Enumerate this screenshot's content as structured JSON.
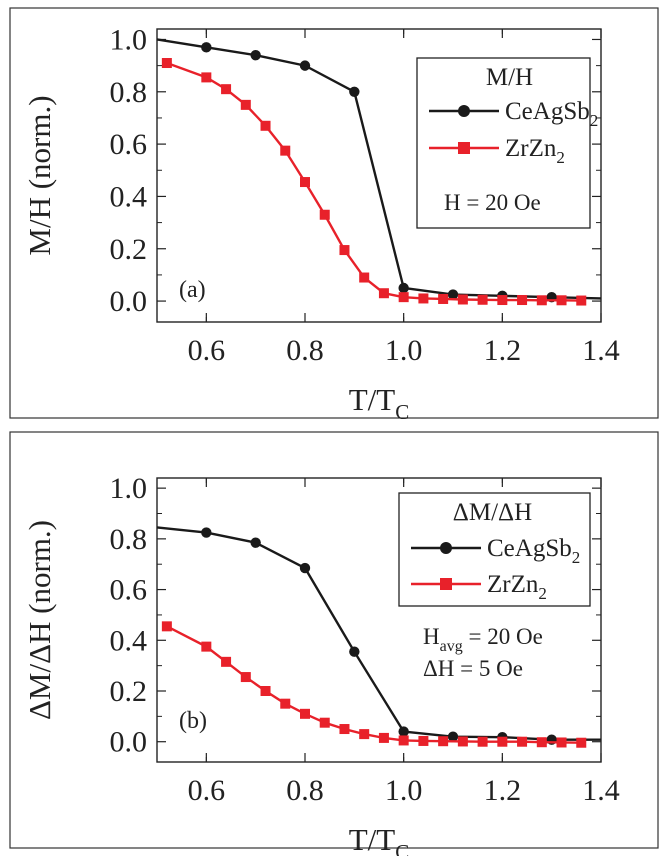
{
  "chart_data": [
    {
      "type": "line",
      "panel_label": "(a)",
      "xlabel": "T/T",
      "xlabel_sub": "C",
      "ylabel": "M/H (norm.)",
      "xlim": [
        0.5,
        1.4
      ],
      "ylim": [
        -0.08,
        1.04
      ],
      "xticks": [
        0.6,
        0.8,
        1.0,
        1.2,
        1.4
      ],
      "xtick_labels": [
        "0.6",
        "0.8",
        "1.0",
        "1.2",
        "1.4"
      ],
      "yticks": [
        0.0,
        0.2,
        0.4,
        0.6,
        0.8,
        1.0
      ],
      "ytick_labels": [
        "0.0",
        "0.2",
        "0.4",
        "0.6",
        "0.8",
        "1.0"
      ],
      "legend_title": "M/H",
      "legend_position": "top-right",
      "annotations": [
        {
          "text": "H = 20 Oe"
        }
      ],
      "series": [
        {
          "name": "CeAgSb",
          "name_sub": "2",
          "color": "#1a1a1a",
          "marker": "circle",
          "x": [
            0.5,
            0.6,
            0.7,
            0.8,
            0.9,
            1.0,
            1.1,
            1.2,
            1.3,
            1.4
          ],
          "y": [
            1.0,
            0.97,
            0.94,
            0.9,
            0.8,
            0.05,
            0.025,
            0.02,
            0.015,
            0.01
          ],
          "markers_at": [
            0.6,
            0.7,
            0.8,
            0.9,
            1.0,
            1.1,
            1.2,
            1.3
          ]
        },
        {
          "name": "ZrZn",
          "name_sub": "2",
          "color": "#e8212a",
          "marker": "square",
          "x": [
            0.52,
            0.6,
            0.64,
            0.68,
            0.72,
            0.76,
            0.8,
            0.84,
            0.88,
            0.92,
            0.96,
            1.0,
            1.04,
            1.08,
            1.12,
            1.16,
            1.2,
            1.24,
            1.28,
            1.32,
            1.36
          ],
          "y": [
            0.91,
            0.855,
            0.81,
            0.75,
            0.67,
            0.575,
            0.455,
            0.33,
            0.195,
            0.09,
            0.03,
            0.015,
            0.01,
            0.008,
            0.006,
            0.005,
            0.004,
            0.004,
            0.003,
            0.003,
            0.002
          ],
          "markers_at": "all"
        }
      ]
    },
    {
      "type": "line",
      "panel_label": "(b)",
      "xlabel": "T/T",
      "xlabel_sub": "C",
      "ylabel": "ΔM/ΔH (norm.)",
      "xlim": [
        0.5,
        1.4
      ],
      "ylim": [
        -0.08,
        1.04
      ],
      "xticks": [
        0.6,
        0.8,
        1.0,
        1.2,
        1.4
      ],
      "xtick_labels": [
        "0.6",
        "0.8",
        "1.0",
        "1.2",
        "1.4"
      ],
      "yticks": [
        0.0,
        0.2,
        0.4,
        0.6,
        0.8,
        1.0
      ],
      "ytick_labels": [
        "0.0",
        "0.2",
        "0.4",
        "0.6",
        "0.8",
        "1.0"
      ],
      "legend_title": "ΔM/ΔH",
      "legend_position": "top-right",
      "annotations": [
        {
          "text": "H",
          "sub": "avg",
          "after": " = 20 Oe"
        },
        {
          "text": "ΔH   = 5 Oe"
        }
      ],
      "series": [
        {
          "name": "CeAgSb",
          "name_sub": "2",
          "color": "#1a1a1a",
          "marker": "circle",
          "x": [
            0.5,
            0.6,
            0.7,
            0.8,
            0.9,
            1.0,
            1.1,
            1.2,
            1.3,
            1.4
          ],
          "y": [
            0.845,
            0.825,
            0.785,
            0.685,
            0.355,
            0.04,
            0.02,
            0.018,
            0.008,
            0.008
          ],
          "markers_at": [
            0.6,
            0.7,
            0.8,
            0.9,
            1.0,
            1.1,
            1.2,
            1.3
          ]
        },
        {
          "name": "ZrZn",
          "name_sub": "2",
          "color": "#e8212a",
          "marker": "square",
          "x": [
            0.52,
            0.6,
            0.64,
            0.68,
            0.72,
            0.76,
            0.8,
            0.84,
            0.88,
            0.92,
            0.96,
            1.0,
            1.04,
            1.08,
            1.12,
            1.16,
            1.2,
            1.24,
            1.28,
            1.32,
            1.36
          ],
          "y": [
            0.455,
            0.375,
            0.315,
            0.255,
            0.2,
            0.15,
            0.11,
            0.075,
            0.05,
            0.03,
            0.015,
            0.005,
            0.003,
            0.002,
            0.001,
            0.0,
            0.0,
            0.0,
            -0.002,
            -0.003,
            -0.004
          ],
          "markers_at": "all"
        }
      ]
    }
  ]
}
